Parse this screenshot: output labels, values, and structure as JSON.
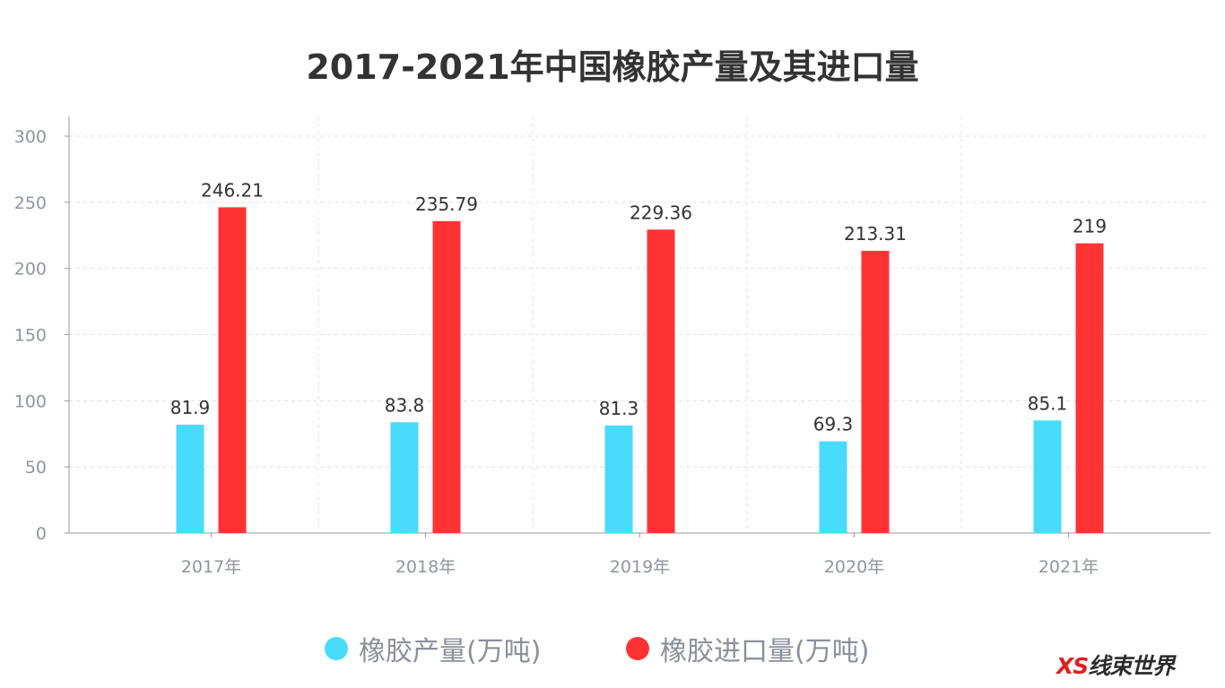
{
  "chart_data": {
    "type": "bar",
    "title": "2017-2021年中国橡胶产量及其进口量",
    "categories": [
      "2017年",
      "2018年",
      "2019年",
      "2020年",
      "2021年"
    ],
    "series": [
      {
        "name": "橡胶产量(万吨)",
        "color": "#48dbfb",
        "values": [
          81.9,
          83.8,
          81.3,
          69.3,
          85.1
        ],
        "labels": [
          "81.9",
          "83.8",
          "81.3",
          "69.3",
          "85.1"
        ]
      },
      {
        "name": "橡胶进口量(万吨)",
        "color": "#ff3333",
        "values": [
          246.21,
          235.79,
          229.36,
          213.31,
          219
        ],
        "labels": [
          "246.21",
          "235.79",
          "229.36",
          "213.31",
          "219"
        ]
      }
    ],
    "yticks": [
      "0",
      "50",
      "100",
      "150",
      "200",
      "250",
      "300"
    ],
    "ylim": [
      0,
      300
    ],
    "grid": true,
    "legend": "bottom"
  },
  "watermark": "XS线束世界"
}
